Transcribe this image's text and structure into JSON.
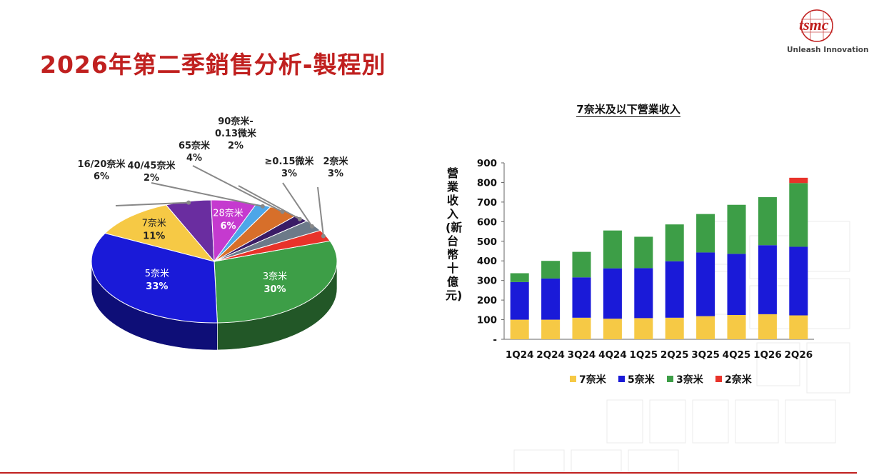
{
  "header": {
    "title": "2026年第二季銷售分析-製程別",
    "logo_text": "tsmc",
    "tagline": "Unleash Innovation"
  },
  "chart_data": [
    {
      "type": "pie",
      "title": "",
      "categories": [
        "3奈米",
        "5奈米",
        "7奈米",
        "16/20奈米",
        "28奈米",
        "40/45奈米",
        "65奈米",
        "90奈米-0.13微米",
        "≥0.15微米",
        "2奈米"
      ],
      "label_lines": [
        [
          "3奈米"
        ],
        [
          "5奈米"
        ],
        [
          "7奈米"
        ],
        [
          "16/20奈米"
        ],
        [
          "28奈米"
        ],
        [
          "40/45奈米"
        ],
        [
          "65奈米"
        ],
        [
          "90奈米-",
          "0.13微米"
        ],
        [
          "≥0.15微米"
        ],
        [
          "2奈米"
        ]
      ],
      "values": [
        30,
        33,
        11,
        6,
        6,
        2,
        4,
        2,
        3,
        3
      ],
      "value_labels": [
        "30%",
        "33%",
        "11%",
        "6%",
        "6%",
        "2%",
        "4%",
        "2%",
        "3%",
        "3%"
      ],
      "colors": [
        "#3d9e47",
        "#1a1ad8",
        "#f6c945",
        "#6a2da0",
        "#c53acf",
        "#4da6e8",
        "#d76f2a",
        "#3a1c66",
        "#6c7a89",
        "#e8332a"
      ]
    },
    {
      "type": "bar",
      "stacked": true,
      "title": "7奈米及以下營業收入",
      "ylabel": "營業收入(新台幣十億元)",
      "categories": [
        "1Q24",
        "2Q24",
        "3Q24",
        "4Q24",
        "1Q25",
        "2Q25",
        "3Q25",
        "4Q25",
        "1Q26",
        "2Q26"
      ],
      "ylim": [
        0,
        900
      ],
      "yticks": [
        0,
        100,
        200,
        300,
        400,
        500,
        600,
        700,
        800,
        900
      ],
      "ytick_labels": [
        "-",
        "100",
        "200",
        "300",
        "400",
        "500",
        "600",
        "700",
        "800",
        "900"
      ],
      "series": [
        {
          "name": "7奈米",
          "color": "#f6c945",
          "values": [
            100,
            100,
            110,
            105,
            108,
            110,
            118,
            124,
            128,
            122
          ]
        },
        {
          "name": "5奈米",
          "color": "#1a1ad8",
          "values": [
            192,
            210,
            206,
            257,
            255,
            288,
            325,
            312,
            352,
            350
          ]
        },
        {
          "name": "3奈米",
          "color": "#3d9e47",
          "values": [
            45,
            90,
            130,
            193,
            160,
            188,
            196,
            250,
            245,
            325
          ]
        },
        {
          "name": "2奈米",
          "color": "#e8332a",
          "values": [
            0,
            0,
            0,
            0,
            0,
            0,
            0,
            0,
            0,
            27
          ]
        }
      ],
      "legend_position": "bottom"
    }
  ]
}
